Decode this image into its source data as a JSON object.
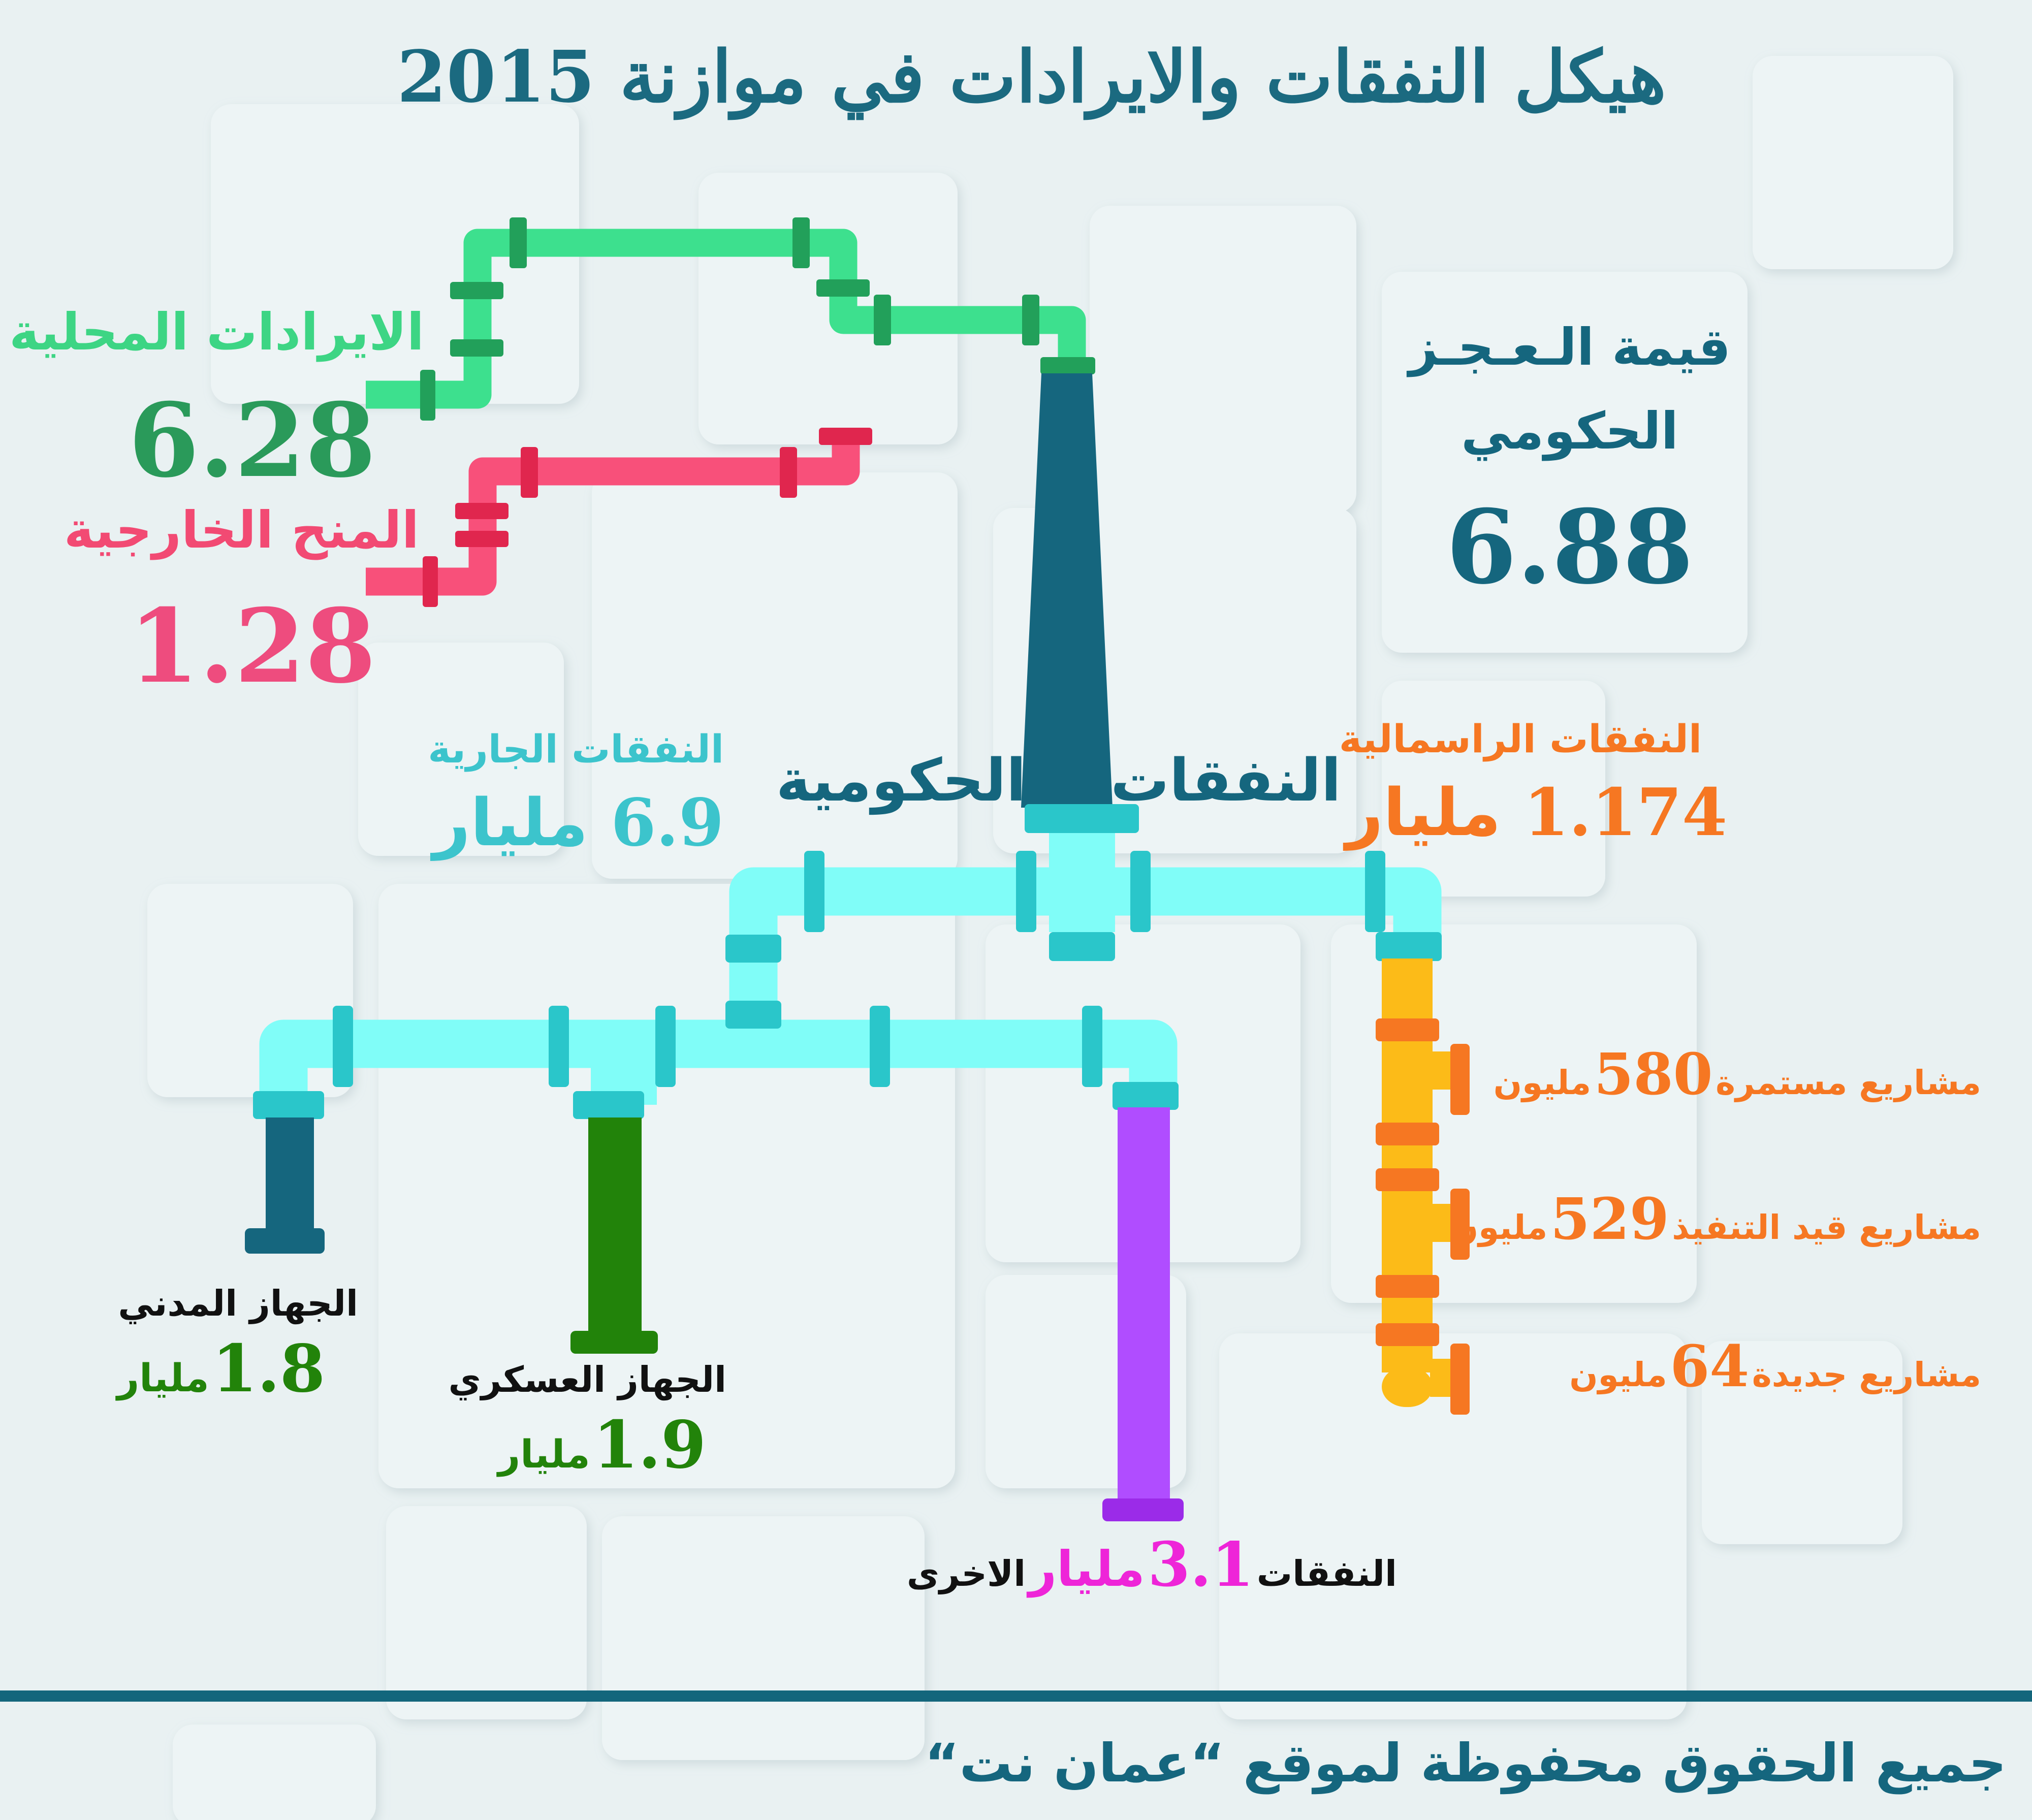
{
  "title": "هيكل النفقات والايرادات في موازنة 2015",
  "revenue": {
    "local": {
      "label": "الايرادات المحلية",
      "value": "6.28"
    },
    "grants": {
      "label": "المنح الخارجية",
      "value": "1.28"
    }
  },
  "deficit": {
    "label_line1": "قيمة الـعـجـز",
    "label_line2": "الحكومي",
    "value": "6.88"
  },
  "expenditure": {
    "center_label_a": "النفقات",
    "center_label_b": "الحكومية",
    "current": {
      "label": "النفقات الجارية",
      "value": "6.9",
      "unit": "مليار"
    },
    "capital": {
      "label": "النفقات الراسمالية",
      "value": "1.174",
      "unit": "مليار"
    },
    "civil": {
      "label": "الجهاز المدني",
      "value": "1.8",
      "unit": "مليار"
    },
    "military": {
      "label": "الجهاز العسكري",
      "value": "1.9",
      "unit": "مليار"
    },
    "other": {
      "label_a": "النفقات",
      "value": "3.1",
      "unit": "مليار",
      "label_b": "الاخرى"
    }
  },
  "projects": [
    {
      "label": "مشاريع مستمرة",
      "value": "580",
      "unit": "مليون"
    },
    {
      "label": "مشاريع قيد التنفيذ",
      "value": "529",
      "unit": "مليون"
    },
    {
      "label": "مشاريع جديدة",
      "value": "64",
      "unit": "مليون"
    }
  ],
  "footer": "جميع الحقوق محفوظة لموقع “عمان نت“",
  "colors": {
    "title": "#1b6a80",
    "local": "#3de08e",
    "local_text": "#3dd584",
    "local_value": "#2a9a5a",
    "grants": "#f8507a",
    "grants_text": "#f24a73",
    "grants_value": "#ee4c7e",
    "trunk": "#15667e",
    "branch": "#80fdf8",
    "branch_joint": "#2ac6ca",
    "current_text": "#3cc4cc",
    "capital": "#fcbb18",
    "capital_text": "#f67722",
    "civil": "#15667e",
    "military": "#22830a",
    "other": "#b04dff",
    "other_value": "#ee25d8"
  }
}
